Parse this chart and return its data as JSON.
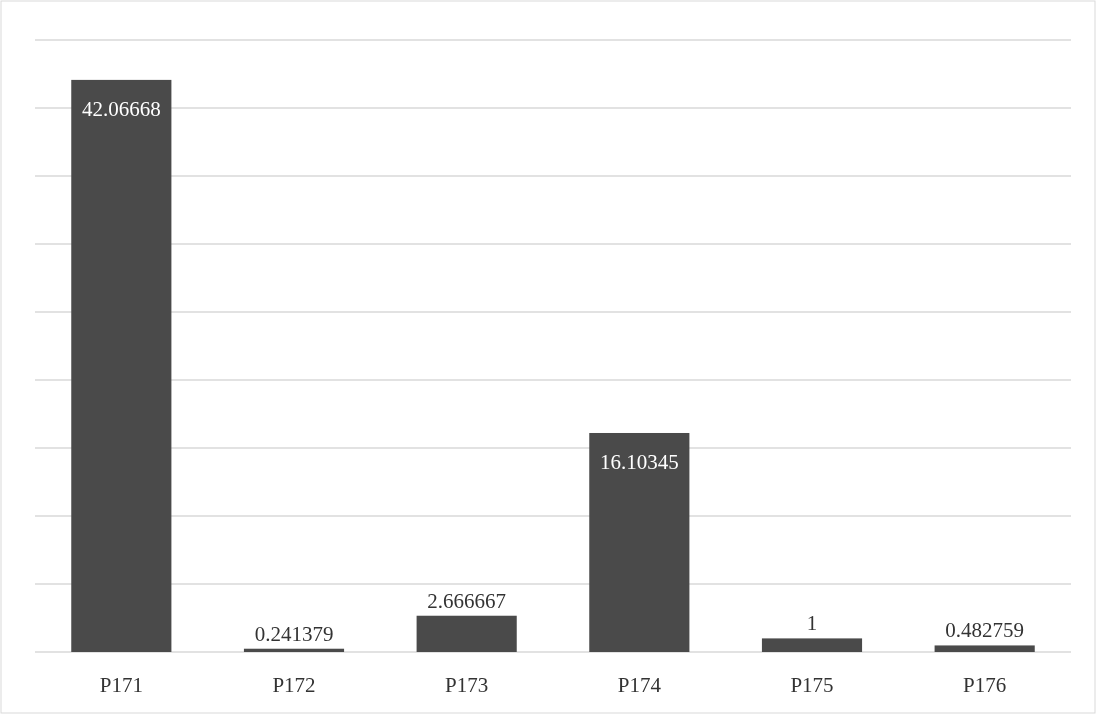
{
  "chart_data": {
    "type": "bar",
    "categories": [
      "P171",
      "P172",
      "P173",
      "P174",
      "P175",
      "P176"
    ],
    "values": [
      42.06668,
      0.241379,
      2.666667,
      16.10345,
      1,
      0.482759
    ],
    "color": "#4a4a4a",
    "data_labels": true,
    "grid": "y",
    "tick_labels": "x",
    "ylim": [
      0,
      45
    ],
    "yticks": [
      {
        "value": 0,
        "label": null
      },
      {
        "value": 5,
        "label": null
      },
      {
        "value": 10,
        "label": null
      },
      {
        "value": 15,
        "label": null
      },
      {
        "value": 20,
        "label": null
      },
      {
        "value": 25,
        "label": null
      },
      {
        "value": 30,
        "label": null
      },
      {
        "value": 35,
        "label": null
      },
      {
        "value": 40,
        "label": null
      },
      {
        "value": 45,
        "label": null
      }
    ]
  }
}
